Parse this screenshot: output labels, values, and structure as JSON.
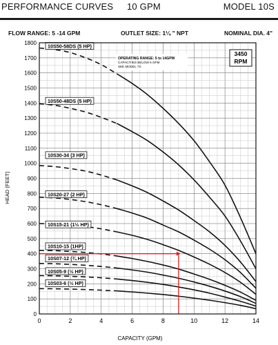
{
  "header": {
    "title_left": "PERFORMANCE CURVES",
    "title_mid": "10 GPM",
    "title_right": "MODEL 10S"
  },
  "specs": {
    "flow_range": "FLOW RANGE: 5 -14 GPM",
    "outlet_size": "OUTLET SIZE: 1¼ \" NPT",
    "nominal_dia": "NOMINAL DIA. 4\""
  },
  "chart_data": {
    "type": "line",
    "xlabel": "CAPACITY (GPM)",
    "ylabel": "HEAD (FEET)",
    "xlim": [
      0,
      14
    ],
    "ylim": [
      0,
      1800
    ],
    "x_ticks": [
      0,
      2,
      4,
      6,
      8,
      10,
      12,
      14
    ],
    "y_ticks": [
      0,
      100,
      200,
      300,
      400,
      500,
      600,
      700,
      800,
      900,
      1000,
      1100,
      1200,
      1300,
      1400,
      1500,
      1600,
      1700,
      1800
    ],
    "grid": true,
    "rpm_label": [
      "3450",
      "RPM"
    ],
    "note_lines": [
      "OPERATING RANGE: 5 to 14GPM",
      "CAPACITIES BELOW 5 GPM",
      "SEE MODEL 7S"
    ],
    "marker_line": {
      "x": 9,
      "y": 400,
      "color": "#e02020"
    },
    "series": [
      {
        "name": "10S50-58DS (5 HP)",
        "label_y": 1770,
        "x": [
          0,
          1,
          2,
          3,
          4,
          5,
          6,
          7,
          8,
          9,
          10,
          11,
          12,
          13,
          14
        ],
        "y": [
          1765,
          1755,
          1735,
          1700,
          1655,
          1595,
          1530,
          1455,
          1365,
          1265,
          1150,
          1010,
          855,
          640,
          400
        ]
      },
      {
        "name": "10S50-48DS (5 HP)",
        "label_y": 1405,
        "x": [
          0,
          1,
          2,
          3,
          4,
          5,
          6,
          7,
          8,
          9,
          10,
          11,
          12,
          13,
          14
        ],
        "y": [
          1395,
          1385,
          1365,
          1340,
          1305,
          1265,
          1210,
          1150,
          1075,
          990,
          890,
          775,
          650,
          485,
          300
        ]
      },
      {
        "name": "10S30-34 (3 HP)",
        "label_y": 1045,
        "x": [
          0,
          1,
          2,
          3,
          4,
          5,
          6,
          7,
          8,
          9,
          10,
          11,
          12,
          13,
          14
        ],
        "y": [
          985,
          978,
          965,
          948,
          922,
          890,
          850,
          805,
          750,
          690,
          620,
          545,
          455,
          345,
          215
        ]
      },
      {
        "name": "10S20-27 (2 HP)",
        "label_y": 785,
        "x": [
          0,
          1,
          2,
          3,
          4,
          5,
          6,
          7,
          8,
          9,
          10,
          11,
          12,
          13,
          14
        ],
        "y": [
          775,
          770,
          760,
          745,
          725,
          700,
          670,
          635,
          590,
          545,
          490,
          430,
          360,
          275,
          170
        ]
      },
      {
        "name": "10S15-21 (1½ HP)",
        "label_y": 585,
        "x": [
          0,
          1,
          2,
          3,
          4,
          5,
          6,
          7,
          8,
          9,
          10,
          11,
          12,
          13,
          14
        ],
        "y": [
          600,
          597,
          590,
          580,
          565,
          545,
          522,
          494,
          460,
          422,
          378,
          330,
          275,
          210,
          130
        ]
      },
      {
        "name": "10S10-15 (1HP)",
        "label_y": 440,
        "x": [
          0,
          1,
          2,
          3,
          4,
          5,
          6,
          7,
          8,
          9,
          10,
          11,
          12,
          13,
          14
        ],
        "y": [
          422,
          420,
          415,
          408,
          398,
          385,
          368,
          348,
          325,
          298,
          265,
          230,
          190,
          145,
          90
        ]
      },
      {
        "name": "10S07-12 (¾ HP)",
        "label_y": 360,
        "x": [
          0,
          1,
          2,
          3,
          4,
          5,
          6,
          7,
          8,
          9,
          10,
          11,
          12,
          13,
          14
        ],
        "y": [
          335,
          333,
          329,
          323,
          315,
          305,
          292,
          277,
          258,
          237,
          212,
          184,
          152,
          115,
          70
        ]
      },
      {
        "name": "10S05-9 (½ HP)",
        "label_y": 275,
        "x": [
          0,
          1,
          2,
          3,
          4,
          5,
          6,
          7,
          8,
          9,
          10,
          11,
          12,
          13,
          14
        ],
        "y": [
          255,
          253,
          250,
          246,
          240,
          232,
          222,
          210,
          196,
          179,
          160,
          138,
          112,
          84,
          52
        ]
      },
      {
        "name": "10S03-6 (⅓ HP)",
        "label_y": 195,
        "x": [
          0,
          1,
          2,
          3,
          4,
          5,
          6,
          7,
          8,
          9,
          10,
          11,
          12,
          13,
          14
        ],
        "y": [
          168,
          167,
          165,
          162,
          158,
          153,
          146,
          138,
          129,
          118,
          105,
          91,
          75,
          57,
          35
        ]
      }
    ]
  }
}
